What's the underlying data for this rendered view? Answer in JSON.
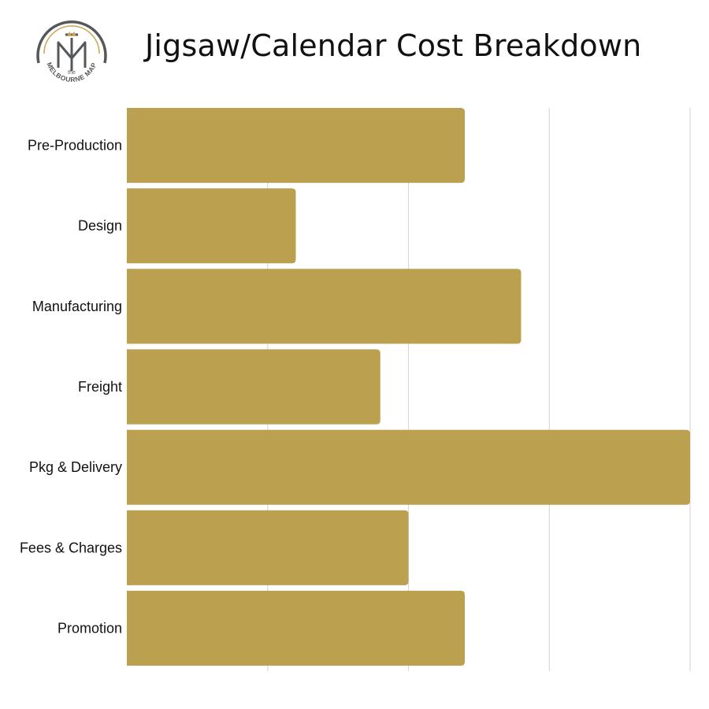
{
  "title": "Jigsaw/Calendar Cost Breakdown",
  "logo": {
    "top_text": "the",
    "ring_text": "MELBOURNE MAP",
    "monogram": "M"
  },
  "colors": {
    "bar": "#BBA04F",
    "grid": "#D9D9D9",
    "logo_ring": "#55575A",
    "logo_accent": "#C9A64F"
  },
  "chart_data": {
    "type": "bar",
    "orientation": "horizontal",
    "title": "Jigsaw/Calendar Cost Breakdown",
    "categories": [
      "Pre-Production",
      "Design",
      "Manufacturing",
      "Freight",
      "Pkg & Delivery",
      "Fees & Charges",
      "Promotion"
    ],
    "values": [
      2.4,
      1.2,
      2.8,
      1.8,
      4.0,
      2.0,
      2.4
    ],
    "xlim": [
      0,
      4
    ],
    "xlabel": "",
    "ylabel": "",
    "grid": true,
    "legend": "none",
    "tick_labels_shown": false
  }
}
